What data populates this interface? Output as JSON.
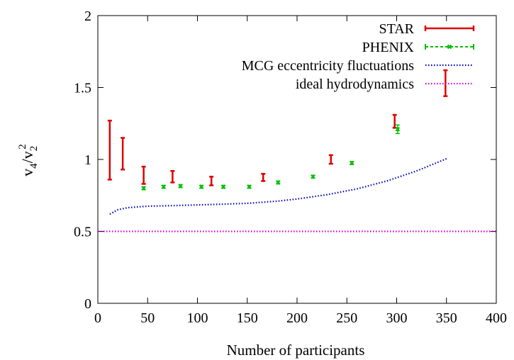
{
  "chart_data": {
    "type": "scatter",
    "xlabel": "Number of participants",
    "ylabel": {
      "base": "v",
      "sub1": "4",
      "slash": "/v",
      "sub2": "2",
      "sup": "2"
    },
    "xlim": [
      0,
      400
    ],
    "ylim": [
      0,
      2
    ],
    "x_ticks": [
      0,
      50,
      100,
      150,
      200,
      250,
      300,
      350,
      400
    ],
    "y_ticks": [
      0,
      0.5,
      1,
      1.5,
      2
    ],
    "x_tick_labels": [
      "0",
      "50",
      "100",
      "150",
      "200",
      "250",
      "300",
      "350",
      "400"
    ],
    "y_tick_labels": [
      "0",
      "0.5",
      "1",
      "1.5",
      "2"
    ],
    "grid": false,
    "legend_position": "top-right",
    "series": [
      {
        "name": "STAR",
        "kind": "errorbar",
        "color": "#e00000",
        "points": [
          {
            "x": 12,
            "low": 0.86,
            "high": 1.27
          },
          {
            "x": 25,
            "low": 0.93,
            "high": 1.15
          },
          {
            "x": 46,
            "low": 0.83,
            "high": 0.95
          },
          {
            "x": 75,
            "low": 0.84,
            "high": 0.92
          },
          {
            "x": 114,
            "low": 0.82,
            "high": 0.88
          },
          {
            "x": 166,
            "low": 0.85,
            "high": 0.9
          },
          {
            "x": 234,
            "low": 0.97,
            "high": 1.03
          },
          {
            "x": 298,
            "low": 1.22,
            "high": 1.31
          },
          {
            "x": 349,
            "low": 1.44,
            "high": 1.62
          }
        ]
      },
      {
        "name": "PHENIX",
        "kind": "errorbar",
        "color": "#00c000",
        "points": [
          {
            "x": 46,
            "y": 0.8,
            "low": 0.79,
            "high": 0.81
          },
          {
            "x": 66,
            "y": 0.81,
            "low": 0.8,
            "high": 0.82
          },
          {
            "x": 83,
            "y": 0.815,
            "low": 0.805,
            "high": 0.825
          },
          {
            "x": 104,
            "y": 0.81,
            "low": 0.8,
            "high": 0.82
          },
          {
            "x": 126,
            "y": 0.81,
            "low": 0.8,
            "high": 0.82
          },
          {
            "x": 152,
            "y": 0.81,
            "low": 0.8,
            "high": 0.82
          },
          {
            "x": 181,
            "y": 0.84,
            "low": 0.83,
            "high": 0.85
          },
          {
            "x": 216,
            "y": 0.88,
            "low": 0.87,
            "high": 0.89
          },
          {
            "x": 255,
            "y": 0.975,
            "low": 0.965,
            "high": 0.985
          },
          {
            "x": 301,
            "y": 1.21,
            "low": 1.18,
            "high": 1.24
          }
        ]
      },
      {
        "name": "MCG eccentricity fluctuations",
        "kind": "line",
        "style": "dotted",
        "color": "#0000c0",
        "x": [
          12,
          20,
          30,
          50,
          80,
          120,
          150,
          180,
          200,
          230,
          260,
          290,
          320,
          350
        ],
        "y": [
          0.62,
          0.65,
          0.665,
          0.675,
          0.68,
          0.688,
          0.695,
          0.71,
          0.725,
          0.755,
          0.795,
          0.85,
          0.92,
          1.005
        ]
      },
      {
        "name": "ideal hydrodynamics",
        "kind": "line",
        "style": "dotted",
        "color": "#d000d0",
        "x": [
          0,
          400
        ],
        "y": [
          0.5,
          0.5
        ]
      }
    ]
  }
}
